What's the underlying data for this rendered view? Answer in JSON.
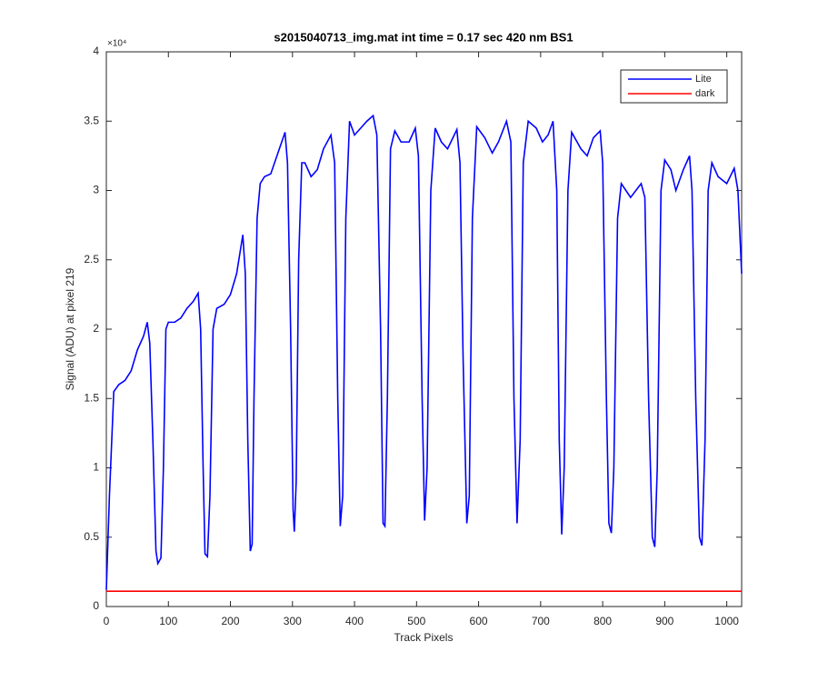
{
  "chart_data": {
    "type": "line",
    "title": "s2015040713_img.mat int time = 0.17 sec  420 nm BS1",
    "x_label": "Track Pixels",
    "y_label": "Signal (ADU) at pixel 219",
    "y_exponent_label": "×10⁴",
    "xlim": [
      0,
      1024
    ],
    "ylim": [
      0,
      40000
    ],
    "xticks": [
      0,
      100,
      200,
      300,
      400,
      500,
      600,
      700,
      800,
      900,
      1000
    ],
    "yticks": [
      0,
      {
        "value": 5000,
        "label": "0.5"
      },
      {
        "value": 10000,
        "label": "1"
      },
      {
        "value": 15000,
        "label": "1.5"
      },
      {
        "value": 20000,
        "label": "2"
      },
      {
        "value": 25000,
        "label": "2.5"
      },
      {
        "value": 30000,
        "label": "3"
      },
      {
        "value": 35000,
        "label": "3.5"
      },
      {
        "value": 40000,
        "label": "4"
      }
    ],
    "legend": "northeast",
    "series": [
      {
        "name": "Lite",
        "color": "#0000ff",
        "x": [
          0,
          5,
          12,
          20,
          30,
          40,
          50,
          60,
          66,
          70,
          75,
          80,
          83,
          88,
          92,
          96,
          100,
          110,
          120,
          130,
          140,
          148,
          152,
          156,
          159,
          163,
          167,
          172,
          178,
          190,
          200,
          210,
          220,
          224,
          228,
          232,
          235,
          238,
          243,
          248,
          255,
          265,
          275,
          288,
          292,
          297,
          301,
          303,
          306,
          310,
          315,
          320,
          330,
          340,
          350,
          362,
          368,
          373,
          377,
          381,
          386,
          392,
          400,
          410,
          420,
          430,
          436,
          442,
          446,
          449,
          453,
          458,
          465,
          475,
          488,
          498,
          503,
          509,
          513,
          517,
          523,
          530,
          540,
          550,
          565,
          570,
          575,
          581,
          585,
          590,
          597,
          610,
          622,
          632,
          645,
          652,
          657,
          662,
          667,
          672,
          680,
          693,
          703,
          712,
          720,
          726,
          730,
          734,
          738,
          744,
          750,
          765,
          775,
          785,
          796,
          800,
          806,
          810,
          814,
          818,
          824,
          830,
          845,
          862,
          868,
          874,
          880,
          884,
          888,
          894,
          900,
          910,
          918,
          930,
          940,
          944,
          950,
          956,
          960,
          965,
          970,
          976,
          986,
          1000,
          1012,
          1018,
          1022,
          1024
        ],
        "values": [
          1200,
          8000,
          15500,
          16000,
          16300,
          17000,
          18500,
          19500,
          20500,
          19000,
          12000,
          4000,
          3100,
          3500,
          10000,
          20000,
          20500,
          20500,
          20800,
          21500,
          22000,
          22600,
          20000,
          10000,
          3800,
          3600,
          8000,
          20000,
          21500,
          21800,
          22500,
          24000,
          26800,
          24000,
          12000,
          4000,
          4500,
          15000,
          28000,
          30500,
          31000,
          31200,
          32500,
          34200,
          32000,
          20000,
          7000,
          5400,
          9000,
          25000,
          32000,
          32000,
          31000,
          31500,
          33000,
          34000,
          32000,
          15000,
          5800,
          8000,
          28000,
          35000,
          34000,
          34500,
          35000,
          35400,
          34000,
          20000,
          6000,
          5800,
          15000,
          33000,
          34300,
          33500,
          33500,
          34500,
          32500,
          15000,
          6200,
          10000,
          30000,
          34500,
          33500,
          33000,
          34400,
          32000,
          18000,
          6000,
          8000,
          28000,
          34600,
          33800,
          32700,
          33500,
          35000,
          33500,
          15000,
          6000,
          12000,
          32000,
          35000,
          34500,
          33500,
          34000,
          35000,
          30000,
          12000,
          5200,
          10000,
          30000,
          34200,
          33000,
          32500,
          33800,
          34300,
          32000,
          15000,
          6000,
          5300,
          10000,
          28000,
          30500,
          29500,
          30500,
          29500,
          15000,
          5000,
          4300,
          10000,
          30000,
          32200,
          31500,
          30000,
          31500,
          32500,
          30000,
          15000,
          5000,
          4400,
          12000,
          30000,
          32000,
          31000,
          30500,
          31600,
          30000,
          26000,
          24000
        ]
      },
      {
        "name": "dark",
        "color": "#ff0000",
        "x": [
          0,
          1024
        ],
        "values": [
          1100,
          1100
        ]
      }
    ]
  }
}
